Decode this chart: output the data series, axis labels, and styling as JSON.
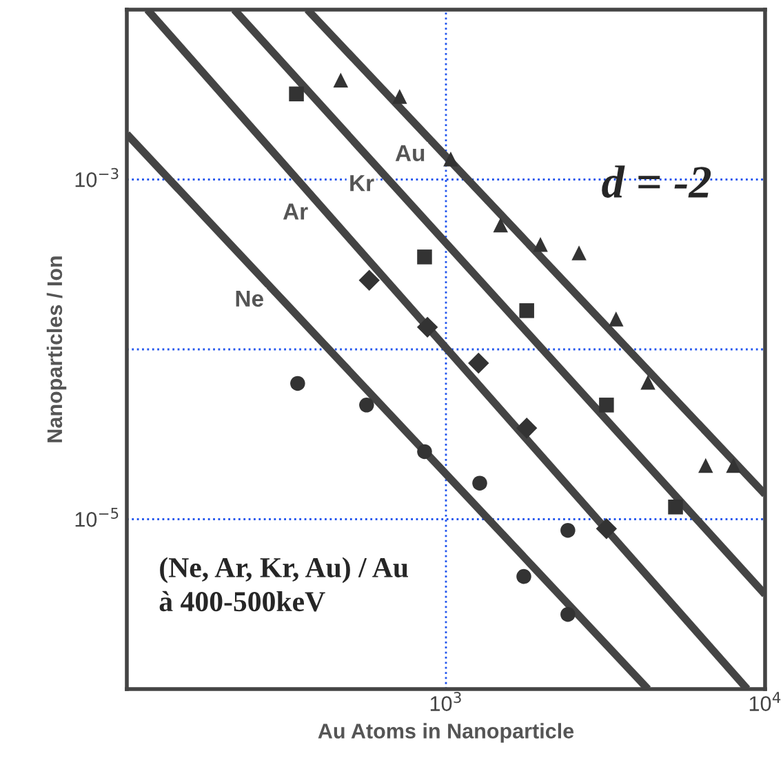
{
  "chart_data": {
    "type": "scatter",
    "xlabel": "Au Atoms in Nanoparticle",
    "ylabel": "Nanoparticles / Ion",
    "log": "xy",
    "grid": true,
    "xlim": [
      100,
      10000
    ],
    "ylim": [
      1e-06,
      0.01
    ],
    "xticks": [
      {
        "value": 1000,
        "label": "10$^{3}$"
      },
      {
        "value": 10000,
        "label": "10$^{4}$"
      }
    ],
    "yticks": [
      {
        "value": 0.001,
        "label": "10$^{−3}$"
      },
      {
        "value": 0.0001,
        "label": null
      },
      {
        "value": 1e-05,
        "label": "10$^{−5}$"
      }
    ],
    "series": [
      {
        "marker": "circle",
        "color": "#333333",
        "x": [
          343,
          564,
          857,
          1276,
          2410,
          1754,
          2410
        ],
        "values": [
          6.3e-05,
          4.7e-05,
          2.5e-05,
          1.63e-05,
          8.6e-06,
          4.6e-06,
          2.75e-06
        ]
      },
      {
        "marker": "diamond",
        "color": "#333333",
        "x": [
          575,
          875,
          1265,
          1791,
          3184
        ],
        "values": [
          0.000255,
          0.000135,
          8.3e-05,
          3.44e-05,
          8.8e-06
        ]
      },
      {
        "marker": "square",
        "color": "#333333",
        "x": [
          340,
          857,
          1791,
          3184,
          5240
        ],
        "values": [
          0.00319,
          0.00035,
          0.000169,
          4.7e-05,
          1.18e-05
        ]
      },
      {
        "marker": "triangle",
        "color": "#333333",
        "x": [
          468,
          716,
          1035,
          1483,
          1977,
          2612,
          3412,
          4295,
          6515,
          7960
        ],
        "values": [
          0.00385,
          0.00308,
          0.00132,
          0.00054,
          0.000415,
          0.00037,
          0.000151,
          6.4e-05,
          2.07e-05,
          2.07e-05
        ]
      },
      {
        "type": "line",
        "name": "Ne",
        "marker": "none",
        "color": "#444444",
        "x": [
          100,
          4295
        ],
        "values": [
          0.00185,
          1e-06
        ]
      },
      {
        "type": "line",
        "name": "Ar",
        "marker": "none",
        "color": "#444444",
        "x": [
          116,
          8790
        ],
        "values": [
          0.01,
          1e-06
        ]
      },
      {
        "type": "line",
        "name": "Kr",
        "marker": "none",
        "color": "#444444",
        "x": [
          217,
          10000
        ],
        "values": [
          0.01,
          3.6e-06
        ]
      },
      {
        "type": "line",
        "name": "Au",
        "marker": "none",
        "color": "#444444",
        "x": [
          368,
          10000
        ],
        "values": [
          0.01,
          1.4e-05
        ]
      }
    ],
    "annotations": [
      "d = -2",
      "(Ne, Ar, Kr, Au) / Au\nà 400-500keV"
    ]
  }
}
